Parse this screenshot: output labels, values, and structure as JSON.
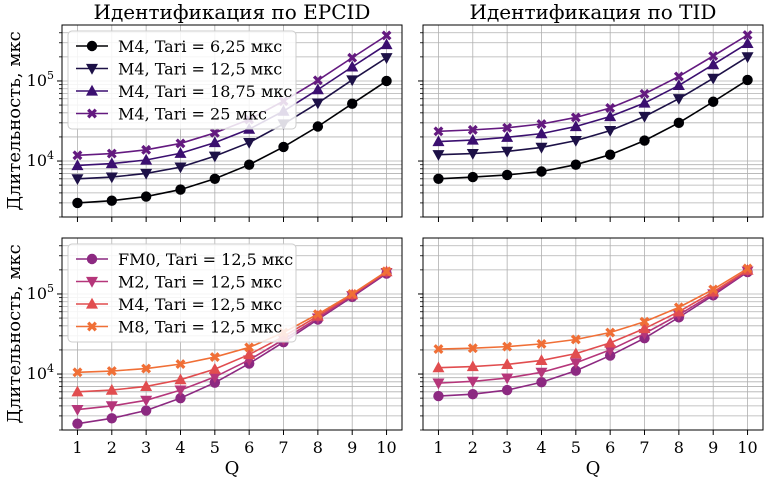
{
  "chart_data": [
    {
      "type": "line",
      "title": "Идентификация по EPCID",
      "xlabel": "",
      "ylabel": "Длительность, мкс",
      "yscale": "log",
      "ylim": [
        2000,
        500000
      ],
      "x": [
        1,
        2,
        3,
        4,
        5,
        6,
        7,
        8,
        9,
        10
      ],
      "xticks_shown": false,
      "yticks": [
        "10^4",
        "10^5"
      ],
      "grid": true,
      "legend": "top-left",
      "series": [
        {
          "name": "M4, Tari = 6,25 мкс",
          "color": "#000004",
          "marker": "circle",
          "values": [
            3000,
            3200,
            3600,
            4400,
            6000,
            9000,
            15000,
            27000,
            52000,
            100000
          ]
        },
        {
          "name": "M4, Tari = 12,5 мкс",
          "color": "#1d1147",
          "marker": "triangle-down",
          "values": [
            6000,
            6300,
            7000,
            8400,
            11500,
            17000,
            29000,
            53000,
            103000,
            195000
          ]
        },
        {
          "name": "M4, Tari = 18,75 мкс",
          "color": "#3b0f70",
          "marker": "triangle-up",
          "values": [
            8800,
            9300,
            10300,
            12500,
            17000,
            25000,
            42000,
            78000,
            150000,
            285000
          ]
        },
        {
          "name": "M4, Tari = 25 мкс",
          "color": "#641a80",
          "marker": "x",
          "values": [
            11800,
            12400,
            13800,
            16600,
            22500,
            33000,
            56000,
            102000,
            195000,
            370000
          ]
        }
      ]
    },
    {
      "type": "line",
      "title": "Идентификация по TID",
      "xlabel": "",
      "ylabel": "",
      "yscale": "log",
      "ylim": [
        2000,
        500000
      ],
      "x": [
        1,
        2,
        3,
        4,
        5,
        6,
        7,
        8,
        9,
        10
      ],
      "xticks_shown": false,
      "yticks_labels_shown": false,
      "grid": true,
      "series": [
        {
          "color": "#000004",
          "marker": "circle",
          "values": [
            6000,
            6300,
            6700,
            7400,
            9000,
            12000,
            18000,
            30000,
            55000,
            103000
          ]
        },
        {
          "color": "#1d1147",
          "marker": "triangle-down",
          "values": [
            12000,
            12400,
            13200,
            14800,
            18000,
            24000,
            36000,
            60000,
            108000,
            200000
          ]
        },
        {
          "color": "#3b0f70",
          "marker": "triangle-up",
          "values": [
            17500,
            18300,
            19800,
            22000,
            27000,
            36000,
            53000,
            88000,
            160000,
            295000
          ]
        },
        {
          "color": "#641a80",
          "marker": "x",
          "values": [
            23500,
            24500,
            26000,
            29000,
            35000,
            46000,
            69000,
            114000,
            205000,
            375000
          ]
        }
      ]
    },
    {
      "type": "line",
      "title": "",
      "xlabel": "Q",
      "ylabel": "Длительность, мкс",
      "yscale": "log",
      "ylim": [
        2000,
        500000
      ],
      "x": [
        1,
        2,
        3,
        4,
        5,
        6,
        7,
        8,
        9,
        10
      ],
      "xticks": [
        "1",
        "2",
        "3",
        "4",
        "5",
        "6",
        "7",
        "8",
        "9",
        "10"
      ],
      "yticks": [
        "10^4",
        "10^5"
      ],
      "grid": true,
      "legend": "top-left",
      "series": [
        {
          "name": "FM0, Tari = 12,5 мкс",
          "color": "#8c2981",
          "marker": "circle",
          "values": [
            2400,
            2800,
            3500,
            5000,
            7800,
            13500,
            25000,
            48000,
            92000,
            180000
          ]
        },
        {
          "name": "M2, Tari = 12,5 мкс",
          "color": "#b5367a",
          "marker": "triangle-down",
          "values": [
            3600,
            4000,
            4700,
            6300,
            9200,
            15000,
            27000,
            50000,
            95000,
            185000
          ]
        },
        {
          "name": "M4, Tari = 12,5 мкс",
          "color": "#e14d4f",
          "marker": "triangle-up",
          "values": [
            6000,
            6300,
            7000,
            8500,
            11500,
            17500,
            29500,
            53000,
            98000,
            190000
          ]
        },
        {
          "name": "M8, Tari = 12,5 мкс",
          "color": "#f06f36",
          "marker": "x",
          "values": [
            10500,
            10900,
            11700,
            13300,
            16300,
            21500,
            33000,
            56000,
            100000,
            192000
          ]
        }
      ]
    },
    {
      "type": "line",
      "title": "",
      "xlabel": "Q",
      "ylabel": "",
      "yscale": "log",
      "ylim": [
        2000,
        500000
      ],
      "x": [
        1,
        2,
        3,
        4,
        5,
        6,
        7,
        8,
        9,
        10
      ],
      "xticks": [
        "1",
        "2",
        "3",
        "4",
        "5",
        "6",
        "7",
        "8",
        "9",
        "10"
      ],
      "yticks_labels_shown": false,
      "grid": true,
      "series": [
        {
          "color": "#8c2981",
          "marker": "circle",
          "values": [
            5300,
            5600,
            6300,
            7900,
            11000,
            17000,
            28000,
            51000,
            96000,
            188000
          ]
        },
        {
          "color": "#b5367a",
          "marker": "triangle-down",
          "values": [
            7700,
            8100,
            8900,
            10500,
            13800,
            20000,
            32000,
            55000,
            100000,
            193000
          ]
        },
        {
          "color": "#e14d4f",
          "marker": "triangle-up",
          "values": [
            12000,
            12400,
            13200,
            14800,
            18000,
            24500,
            37000,
            60000,
            106000,
            198000
          ]
        },
        {
          "color": "#f06f36",
          "marker": "x",
          "values": [
            20500,
            21000,
            22000,
            23800,
            27000,
            33000,
            45000,
            68000,
            114000,
            208000
          ]
        }
      ]
    }
  ]
}
